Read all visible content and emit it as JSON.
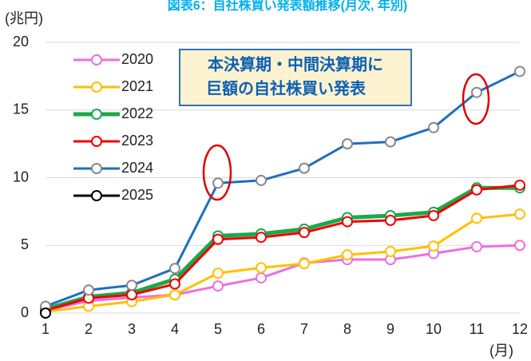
{
  "chart_data": {
    "type": "line",
    "title": "図表6：自社株買い発表額推移(月次, 年別)",
    "y_label": "(兆円)",
    "x_label": "(月)",
    "annotation": [
      "本決算期・中間決算期に",
      "巨額の自社株買い発表"
    ],
    "x": [
      1,
      2,
      3,
      4,
      5,
      6,
      7,
      8,
      9,
      10,
      11,
      12
    ],
    "xlim": [
      1,
      12
    ],
    "xticks": [
      1,
      2,
      3,
      4,
      5,
      6,
      7,
      8,
      9,
      10,
      11,
      12
    ],
    "ylim": [
      0,
      20
    ],
    "yticks": [
      0,
      5,
      10,
      15,
      20
    ],
    "grid": true,
    "series": [
      {
        "name": "2020",
        "color": "#ee6ee0",
        "values": [
          0.2,
          0.9,
          1.15,
          1.35,
          2.0,
          2.6,
          3.7,
          3.95,
          3.95,
          4.4,
          4.9,
          5.0
        ]
      },
      {
        "name": "2021",
        "color": "#ffc000",
        "values": [
          0.1,
          0.5,
          0.85,
          1.35,
          2.95,
          3.35,
          3.65,
          4.3,
          4.55,
          4.95,
          7.0,
          7.3
        ]
      },
      {
        "name": "2022",
        "color": "#1ca84a",
        "values": [
          0.3,
          1.2,
          1.5,
          2.5,
          5.7,
          5.85,
          6.2,
          7.05,
          7.2,
          7.45,
          9.25,
          9.25
        ]
      },
      {
        "name": "2023",
        "color": "#ee0000",
        "values": [
          0.2,
          1.1,
          1.35,
          2.15,
          5.45,
          5.6,
          5.95,
          6.75,
          6.85,
          7.2,
          9.1,
          9.45
        ]
      },
      {
        "name": "2024",
        "color": "#1f6fbf",
        "values": [
          0.5,
          1.7,
          2.05,
          3.3,
          9.6,
          9.8,
          10.7,
          12.5,
          12.65,
          13.7,
          16.3,
          17.85
        ]
      },
      {
        "name": "2025",
        "color": "#000000",
        "values": [
          0.0,
          null,
          null,
          null,
          null,
          null,
          null,
          null,
          null,
          null,
          null,
          null
        ]
      }
    ]
  }
}
